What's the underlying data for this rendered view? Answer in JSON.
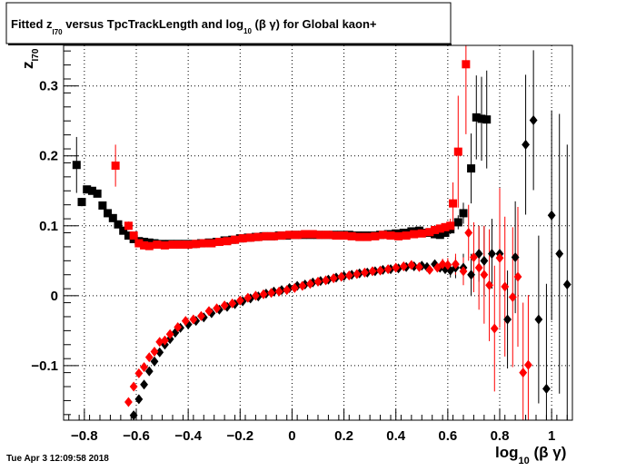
{
  "chart_data": {
    "type": "scatter",
    "title": "Fitted  z",
    "title_sub": "I70",
    "title_mid": "  versus TpcTrackLength and log",
    "title_sub2": "10",
    "title_end": " (β γ) for Global kaon+",
    "xlabel": "log",
    "xlabel_sub": "10",
    "xlabel_end": " (β γ)",
    "ylabel": "z",
    "ylabel_sub": "I70",
    "xlim": [
      -0.88,
      1.08
    ],
    "ylim": [
      -0.178,
      0.358
    ],
    "x_ticks": [
      -0.8,
      -0.6,
      -0.4,
      -0.2,
      0,
      0.2,
      0.4,
      0.6,
      0.8,
      1
    ],
    "x_tick_labels": [
      "−0.8",
      "−0.6",
      "−0.4",
      "−0.2",
      "0",
      "0.2",
      "0.4",
      "0.6",
      "0.8",
      "1"
    ],
    "y_ticks": [
      -0.1,
      0,
      0.1,
      0.2,
      0.3
    ],
    "y_tick_labels": [
      "−0.1",
      "0",
      "0.1",
      "0.2",
      "0.3"
    ],
    "grid": true,
    "timestamp": "Tue Apr  3 12:09:58 2018",
    "colors": {
      "black": "#000000",
      "red": "#ff0000"
    },
    "series": [
      {
        "marker": "square",
        "color": "#000000",
        "points": [
          [
            -0.83,
            0.187,
            0.04
          ],
          [
            -0.81,
            0.134,
            0.006
          ],
          [
            -0.79,
            0.152,
            0.004
          ],
          [
            -0.77,
            0.15,
            0.003
          ],
          [
            -0.75,
            0.146,
            0.003
          ],
          [
            -0.73,
            0.129,
            0.003
          ],
          [
            -0.71,
            0.118,
            0.002
          ],
          [
            -0.69,
            0.111,
            0.002
          ],
          [
            -0.67,
            0.102,
            0.002
          ],
          [
            -0.65,
            0.093,
            0.002
          ],
          [
            -0.63,
            0.086,
            0.002
          ],
          [
            -0.61,
            0.081,
            0.002
          ],
          [
            -0.59,
            0.078,
            0.002
          ],
          [
            -0.57,
            0.077,
            0.001
          ],
          [
            -0.55,
            0.076,
            0.001
          ],
          [
            -0.53,
            0.075,
            0.001
          ],
          [
            -0.5,
            0.074,
            0.001
          ],
          [
            -0.47,
            0.074,
            0.001
          ],
          [
            -0.44,
            0.074,
            0.001
          ],
          [
            -0.41,
            0.074,
            0.001
          ],
          [
            -0.38,
            0.074,
            0.001
          ],
          [
            -0.35,
            0.075,
            0.001
          ],
          [
            -0.32,
            0.076,
            0.001
          ],
          [
            -0.29,
            0.077,
            0.001
          ],
          [
            -0.26,
            0.079,
            0.001
          ],
          [
            -0.23,
            0.08,
            0.001
          ],
          [
            -0.2,
            0.082,
            0.001
          ],
          [
            -0.17,
            0.083,
            0.001
          ],
          [
            -0.14,
            0.084,
            0.001
          ],
          [
            -0.11,
            0.085,
            0.001
          ],
          [
            -0.08,
            0.085,
            0.001
          ],
          [
            -0.05,
            0.086,
            0.001
          ],
          [
            -0.02,
            0.086,
            0.001
          ],
          [
            0.01,
            0.087,
            0.001
          ],
          [
            0.04,
            0.087,
            0.001
          ],
          [
            0.07,
            0.087,
            0.001
          ],
          [
            0.1,
            0.087,
            0.001
          ],
          [
            0.13,
            0.087,
            0.001
          ],
          [
            0.16,
            0.087,
            0.001
          ],
          [
            0.19,
            0.087,
            0.001
          ],
          [
            0.22,
            0.087,
            0.001
          ],
          [
            0.25,
            0.086,
            0.001
          ],
          [
            0.28,
            0.086,
            0.001
          ],
          [
            0.31,
            0.086,
            0.001
          ],
          [
            0.34,
            0.087,
            0.001
          ],
          [
            0.37,
            0.088,
            0.001
          ],
          [
            0.4,
            0.089,
            0.002
          ],
          [
            0.43,
            0.09,
            0.002
          ],
          [
            0.46,
            0.092,
            0.002
          ],
          [
            0.49,
            0.093,
            0.002
          ],
          [
            0.52,
            0.09,
            0.003
          ],
          [
            0.55,
            0.088,
            0.003
          ],
          [
            0.57,
            0.087,
            0.004
          ],
          [
            0.59,
            0.09,
            0.005
          ],
          [
            0.61,
            0.095,
            0.007
          ],
          [
            0.64,
            0.105,
            0.01
          ],
          [
            0.66,
            0.118,
            0.015
          ],
          [
            0.69,
            0.182,
            0.05
          ],
          [
            0.71,
            0.255,
            0.06
          ],
          [
            0.73,
            0.253,
            0.06
          ],
          [
            0.75,
            0.252,
            0.07
          ]
        ]
      },
      {
        "marker": "square",
        "color": "#ff0000",
        "points": [
          [
            -0.68,
            0.186,
            0.03
          ],
          [
            -0.63,
            0.1,
            0.006
          ],
          [
            -0.61,
            0.086,
            0.003
          ],
          [
            -0.59,
            0.075,
            0.002
          ],
          [
            -0.57,
            0.072,
            0.002
          ],
          [
            -0.55,
            0.071,
            0.001
          ],
          [
            -0.52,
            0.073,
            0.001
          ],
          [
            -0.49,
            0.072,
            0.001
          ],
          [
            -0.46,
            0.073,
            0.001
          ],
          [
            -0.43,
            0.073,
            0.001
          ],
          [
            -0.4,
            0.073,
            0.001
          ],
          [
            -0.37,
            0.074,
            0.001
          ],
          [
            -0.34,
            0.075,
            0.001
          ],
          [
            -0.31,
            0.075,
            0.001
          ],
          [
            -0.28,
            0.077,
            0.001
          ],
          [
            -0.25,
            0.078,
            0.001
          ],
          [
            -0.22,
            0.08,
            0.001
          ],
          [
            -0.19,
            0.082,
            0.001
          ],
          [
            -0.16,
            0.083,
            0.001
          ],
          [
            -0.13,
            0.084,
            0.001
          ],
          [
            -0.1,
            0.085,
            0.001
          ],
          [
            -0.07,
            0.085,
            0.001
          ],
          [
            -0.04,
            0.086,
            0.001
          ],
          [
            -0.01,
            0.087,
            0.001
          ],
          [
            0.02,
            0.087,
            0.001
          ],
          [
            0.05,
            0.088,
            0.001
          ],
          [
            0.08,
            0.088,
            0.001
          ],
          [
            0.11,
            0.087,
            0.001
          ],
          [
            0.14,
            0.087,
            0.001
          ],
          [
            0.17,
            0.086,
            0.001
          ],
          [
            0.2,
            0.086,
            0.001
          ],
          [
            0.23,
            0.085,
            0.001
          ],
          [
            0.26,
            0.084,
            0.001
          ],
          [
            0.29,
            0.084,
            0.001
          ],
          [
            0.32,
            0.085,
            0.001
          ],
          [
            0.35,
            0.087,
            0.001
          ],
          [
            0.38,
            0.086,
            0.001
          ],
          [
            0.41,
            0.085,
            0.001
          ],
          [
            0.44,
            0.086,
            0.002
          ],
          [
            0.47,
            0.088,
            0.002
          ],
          [
            0.5,
            0.089,
            0.002
          ],
          [
            0.53,
            0.091,
            0.003
          ],
          [
            0.55,
            0.094,
            0.003
          ],
          [
            0.57,
            0.096,
            0.004
          ],
          [
            0.59,
            0.098,
            0.006
          ],
          [
            0.61,
            0.1,
            0.01
          ],
          [
            0.62,
            0.132,
            0.03
          ],
          [
            0.64,
            0.206,
            0.08
          ],
          [
            0.67,
            0.331,
            0.1
          ]
        ]
      },
      {
        "marker": "diamond",
        "color": "#000000",
        "points": [
          [
            -0.61,
            -0.171,
            0.004
          ],
          [
            -0.59,
            -0.148,
            0.003
          ],
          [
            -0.57,
            -0.127,
            0.003
          ],
          [
            -0.55,
            -0.108,
            0.003
          ],
          [
            -0.53,
            -0.094,
            0.002
          ],
          [
            -0.51,
            -0.081,
            0.002
          ],
          [
            -0.49,
            -0.07,
            0.002
          ],
          [
            -0.47,
            -0.062,
            0.002
          ],
          [
            -0.45,
            -0.053,
            0.002
          ],
          [
            -0.43,
            -0.046,
            0.002
          ],
          [
            -0.4,
            -0.041,
            0.002
          ],
          [
            -0.37,
            -0.036,
            0.002
          ],
          [
            -0.34,
            -0.031,
            0.002
          ],
          [
            -0.31,
            -0.025,
            0.002
          ],
          [
            -0.28,
            -0.02,
            0.002
          ],
          [
            -0.25,
            -0.016,
            0.002
          ],
          [
            -0.22,
            -0.012,
            0.002
          ],
          [
            -0.19,
            -0.008,
            0.002
          ],
          [
            -0.16,
            -0.004,
            0.002
          ],
          [
            -0.13,
            -0.001,
            0.002
          ],
          [
            -0.1,
            0.003,
            0.002
          ],
          [
            -0.07,
            0.006,
            0.002
          ],
          [
            -0.04,
            0.008,
            0.002
          ],
          [
            -0.01,
            0.011,
            0.002
          ],
          [
            0.02,
            0.014,
            0.002
          ],
          [
            0.05,
            0.016,
            0.002
          ],
          [
            0.08,
            0.019,
            0.002
          ],
          [
            0.11,
            0.021,
            0.002
          ],
          [
            0.14,
            0.023,
            0.002
          ],
          [
            0.17,
            0.026,
            0.002
          ],
          [
            0.2,
            0.028,
            0.002
          ],
          [
            0.23,
            0.03,
            0.002
          ],
          [
            0.26,
            0.032,
            0.002
          ],
          [
            0.29,
            0.033,
            0.002
          ],
          [
            0.32,
            0.035,
            0.002
          ],
          [
            0.35,
            0.037,
            0.002
          ],
          [
            0.38,
            0.038,
            0.002
          ],
          [
            0.41,
            0.039,
            0.002
          ],
          [
            0.44,
            0.041,
            0.002
          ],
          [
            0.47,
            0.042,
            0.003
          ],
          [
            0.5,
            0.043,
            0.003
          ],
          [
            0.52,
            0.041,
            0.003
          ],
          [
            0.55,
            0.045,
            0.004
          ],
          [
            0.57,
            0.04,
            0.005
          ],
          [
            0.59,
            0.038,
            0.006
          ],
          [
            0.61,
            0.036,
            0.01
          ],
          [
            0.63,
            0.04,
            0.015
          ],
          [
            0.66,
            0.04,
            0.02
          ],
          [
            0.69,
            0.03,
            0.03
          ],
          [
            0.72,
            0.06,
            0.04
          ],
          [
            0.74,
            0.05,
            0.05
          ],
          [
            0.77,
            0.06,
            0.05
          ],
          [
            0.8,
            0.06,
            0.06
          ],
          [
            0.83,
            -0.034,
            0.07
          ],
          [
            0.86,
            0.055,
            0.08
          ],
          [
            0.9,
            0.216,
            0.1
          ],
          [
            0.93,
            0.251,
            0.1
          ],
          [
            0.95,
            -0.034,
            0.12
          ],
          [
            0.98,
            -0.133,
            0.15
          ],
          [
            1.0,
            0.115,
            0.15
          ],
          [
            1.03,
            0.06,
            0.2
          ],
          [
            1.06,
            0.016,
            0.2
          ]
        ]
      },
      {
        "marker": "diamond",
        "color": "#ff0000",
        "points": [
          [
            -0.63,
            -0.152,
            0.004
          ],
          [
            -0.61,
            -0.13,
            0.003
          ],
          [
            -0.59,
            -0.111,
            0.003
          ],
          [
            -0.57,
            -0.102,
            0.003
          ],
          [
            -0.55,
            -0.088,
            0.002
          ],
          [
            -0.53,
            -0.08,
            0.002
          ],
          [
            -0.51,
            -0.066,
            0.002
          ],
          [
            -0.49,
            -0.064,
            0.002
          ],
          [
            -0.47,
            -0.055,
            0.002
          ],
          [
            -0.44,
            -0.045,
            0.002
          ],
          [
            -0.41,
            -0.036,
            0.002
          ],
          [
            -0.38,
            -0.034,
            0.002
          ],
          [
            -0.35,
            -0.029,
            0.002
          ],
          [
            -0.32,
            -0.022,
            0.002
          ],
          [
            -0.29,
            -0.018,
            0.002
          ],
          [
            -0.26,
            -0.014,
            0.002
          ],
          [
            -0.23,
            -0.011,
            0.002
          ],
          [
            -0.2,
            -0.007,
            0.002
          ],
          [
            -0.17,
            -0.003,
            0.002
          ],
          [
            -0.14,
            0.0,
            0.002
          ],
          [
            -0.11,
            0.002,
            0.002
          ],
          [
            -0.08,
            0.004,
            0.002
          ],
          [
            -0.05,
            0.006,
            0.002
          ],
          [
            -0.02,
            0.008,
            0.002
          ],
          [
            0.01,
            0.011,
            0.002
          ],
          [
            0.04,
            0.014,
            0.002
          ],
          [
            0.07,
            0.017,
            0.002
          ],
          [
            0.1,
            0.02,
            0.002
          ],
          [
            0.13,
            0.022,
            0.002
          ],
          [
            0.16,
            0.025,
            0.002
          ],
          [
            0.19,
            0.027,
            0.002
          ],
          [
            0.22,
            0.029,
            0.002
          ],
          [
            0.25,
            0.031,
            0.002
          ],
          [
            0.28,
            0.033,
            0.002
          ],
          [
            0.31,
            0.035,
            0.002
          ],
          [
            0.34,
            0.036,
            0.002
          ],
          [
            0.37,
            0.038,
            0.002
          ],
          [
            0.4,
            0.04,
            0.002
          ],
          [
            0.43,
            0.042,
            0.003
          ],
          [
            0.46,
            0.044,
            0.003
          ],
          [
            0.49,
            0.041,
            0.003
          ],
          [
            0.53,
            0.037,
            0.004
          ],
          [
            0.56,
            0.04,
            0.005
          ],
          [
            0.58,
            0.045,
            0.008
          ],
          [
            0.6,
            0.044,
            0.01
          ],
          [
            0.63,
            0.045,
            0.015
          ],
          [
            0.66,
            0.035,
            0.02
          ],
          [
            0.68,
            0.09,
            0.04
          ],
          [
            0.7,
            0.055,
            0.05
          ],
          [
            0.72,
            0.04,
            0.06
          ],
          [
            0.74,
            0.03,
            0.07
          ],
          [
            0.76,
            0.015,
            0.08
          ],
          [
            0.78,
            -0.047,
            0.09
          ],
          [
            0.8,
            0.054,
            0.1
          ],
          [
            0.82,
            0.013,
            0.1
          ],
          [
            0.85,
            -0.002,
            0.1
          ],
          [
            0.87,
            0.027,
            0.1
          ],
          [
            0.89,
            -0.11,
            0.1
          ],
          [
            0.91,
            -0.099,
            0.1
          ]
        ]
      }
    ]
  }
}
